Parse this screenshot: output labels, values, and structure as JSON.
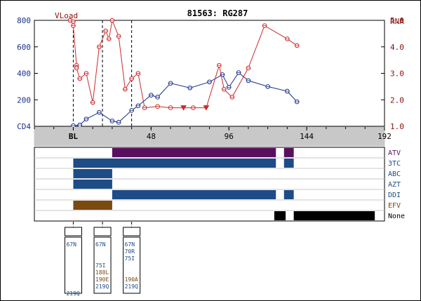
{
  "title": "81563: RG287",
  "left_axis": {
    "label": "VLoad",
    "ticks": [
      {
        "value": 0,
        "label": "CD4"
      },
      {
        "value": 200,
        "label": "200"
      },
      {
        "value": 400,
        "label": "400"
      },
      {
        "value": 600,
        "label": "600"
      },
      {
        "value": 800,
        "label": "800"
      }
    ],
    "range": [
      0,
      800
    ],
    "color": "#1b2f8c"
  },
  "right_axis": {
    "label": "RNA",
    "ticks": [
      {
        "value": 1.0,
        "label": "1.0"
      },
      {
        "value": 2.0,
        "label": "2.0"
      },
      {
        "value": 3.0,
        "label": "3.0"
      },
      {
        "value": 4.0,
        "label": "4.0"
      },
      {
        "value": 5.0,
        "label": "5.0"
      }
    ],
    "range": [
      1.0,
      5.0
    ],
    "color": "#8c1010"
  },
  "x_axis": {
    "range": [
      -24,
      192
    ],
    "ticks": [
      {
        "value": 0,
        "label": "BL"
      },
      {
        "value": 48,
        "label": "48"
      },
      {
        "value": 96,
        "label": "96"
      },
      {
        "value": 144,
        "label": "144"
      },
      {
        "value": 192,
        "label": "192"
      }
    ]
  },
  "chart_data": {
    "type": "line",
    "title": "81563: RG287",
    "xlim": [
      -24,
      192
    ],
    "series": [
      {
        "name": "CD4",
        "axis": "left",
        "color": "#1b2f8c",
        "x": [
          0,
          4,
          8,
          16,
          24,
          28,
          36,
          40,
          48,
          52,
          60,
          72,
          84,
          92,
          96,
          102,
          108,
          120,
          132,
          138
        ],
        "y": [
          5,
          10,
          55,
          105,
          40,
          30,
          120,
          155,
          235,
          220,
          325,
          290,
          335,
          390,
          295,
          405,
          345,
          300,
          265,
          185
        ]
      },
      {
        "name": "RNA",
        "axis": "right",
        "color": "#cc2a2a",
        "x": [
          -2,
          0,
          0,
          2,
          2,
          4,
          8,
          12,
          16,
          20,
          22,
          24,
          28,
          32,
          36,
          40,
          44,
          52,
          60,
          68,
          74,
          82,
          90,
          93,
          98,
          108,
          118,
          132,
          138
        ],
        "y": [
          5.0,
          4.95,
          4.8,
          3.3,
          3.2,
          2.8,
          3.0,
          1.9,
          4.0,
          4.6,
          4.3,
          5.0,
          4.4,
          2.4,
          2.8,
          3.0,
          1.7,
          1.75,
          1.7,
          1.7,
          1.7,
          1.7,
          3.3,
          2.4,
          2.1,
          3.2,
          4.8,
          4.3,
          4.05
        ],
        "below_detection_x": [
          68,
          82
        ]
      }
    ],
    "reference_lines_x": [
      0,
      18,
      36
    ],
    "drugs": [
      {
        "name": "ATV",
        "color": "#5a0f5e",
        "spans": [
          [
            24,
            125
          ],
          [
            130,
            136
          ]
        ]
      },
      {
        "name": "3TC",
        "color": "#1d4c86",
        "spans": [
          [
            0,
            125
          ],
          [
            130,
            136
          ]
        ]
      },
      {
        "name": "ABC",
        "color": "#1d4c86",
        "spans": [
          [
            0,
            24
          ]
        ]
      },
      {
        "name": "AZT",
        "color": "#1d4c86",
        "spans": [
          [
            0,
            24
          ]
        ]
      },
      {
        "name": "DDI",
        "color": "#1d4c86",
        "spans": [
          [
            24,
            125
          ],
          [
            130,
            136
          ]
        ]
      },
      {
        "name": "EFV",
        "color": "#7a4a10",
        "spans": [
          [
            0,
            24
          ]
        ]
      },
      {
        "name": "None",
        "color": "#000000",
        "spans": [
          [
            124,
            131
          ],
          [
            136,
            186
          ]
        ]
      }
    ],
    "mutation_panels": [
      {
        "x": 0,
        "mutations": [
          {
            "text": "67N",
            "color": "#1d4c86",
            "slot": 0
          },
          {
            "text": "219Q",
            "color": "#1d4c86",
            "slot": 7
          }
        ]
      },
      {
        "x": 18,
        "mutations": [
          {
            "text": "67N",
            "color": "#1d4c86",
            "slot": 0
          },
          {
            "text": "75I",
            "color": "#1d4c86",
            "slot": 3
          },
          {
            "text": "188L",
            "color": "#7a4a10",
            "slot": 4
          },
          {
            "text": "190E",
            "color": "#7a4a10",
            "slot": 5
          },
          {
            "text": "219Q",
            "color": "#1d4c86",
            "slot": 6
          }
        ]
      },
      {
        "x": 36,
        "mutations": [
          {
            "text": "67N",
            "color": "#1d4c86",
            "slot": 0
          },
          {
            "text": "70R",
            "color": "#1d4c86",
            "slot": 1
          },
          {
            "text": "75I",
            "color": "#1d4c86",
            "slot": 2
          },
          {
            "text": "190A",
            "color": "#7a4a10",
            "slot": 5
          },
          {
            "text": "219Q",
            "color": "#1d4c86",
            "slot": 6
          }
        ]
      }
    ]
  }
}
